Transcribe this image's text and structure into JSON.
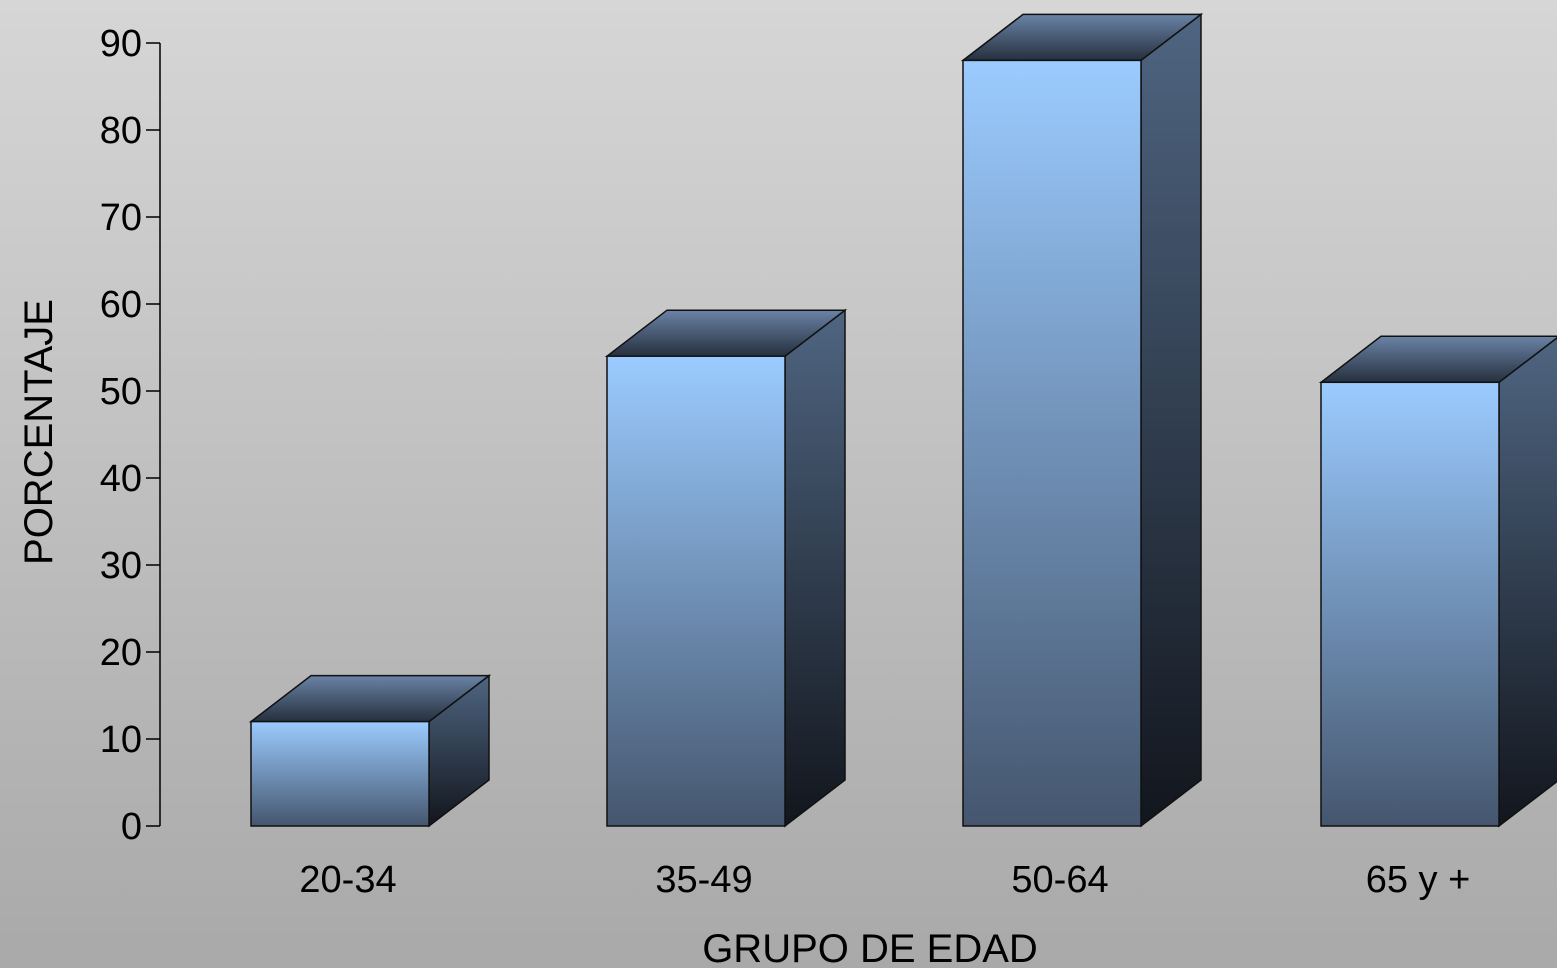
{
  "chart_data": {
    "type": "bar",
    "style": "3d-column",
    "categories": [
      "20-34",
      "35-49",
      "50-64",
      "65 y +"
    ],
    "values": [
      12,
      54,
      88,
      51
    ],
    "xlabel": "GRUPO DE EDAD",
    "ylabel": "PORCENTAJE",
    "ylim": [
      0,
      90
    ],
    "yticks": [
      "0",
      "10",
      "20",
      "30",
      "40",
      "50",
      "60",
      "70",
      "80",
      "90"
    ],
    "grid": false,
    "legend": "none",
    "colors": {
      "front_top": "#9bcbff",
      "front_bottom": "#45566e",
      "top_face": "#5a6f8c",
      "side_top": "#4f6581",
      "side_bottom": "#12161d",
      "outline": "#111111"
    }
  }
}
